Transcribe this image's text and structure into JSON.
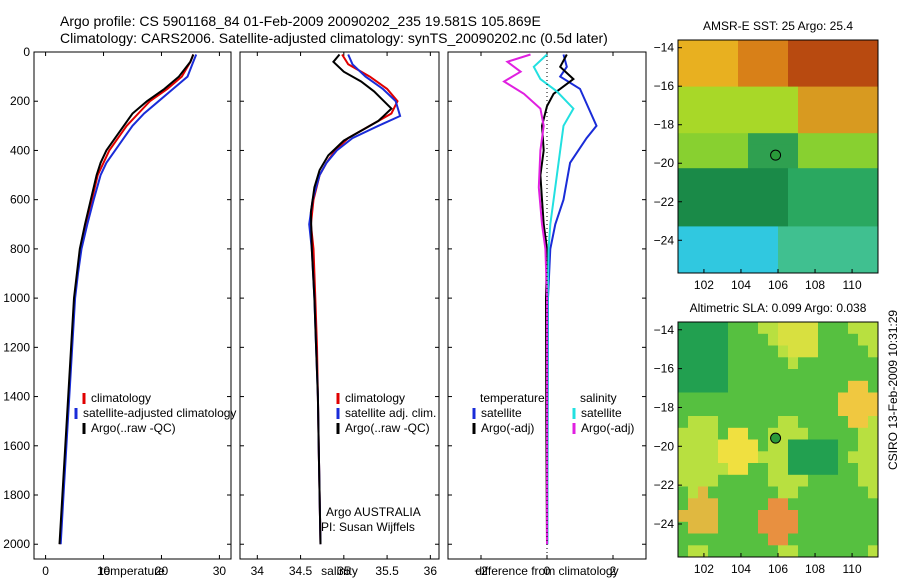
{
  "header": {
    "line1": "Argo profile: CS 5901168_84 01-Feb-2009 20090202_235 19.581S 105.869E",
    "line2": "Climatology: CARS2006. Satellite-adjusted climatology: synTS_20090202.nc (0.5d later)"
  },
  "timestamp": "CSIRO 13-Feb-2009 10:31:29",
  "colors": {
    "climatology": "#e00000",
    "satellite": "#1a2cd8",
    "argo": "#000000",
    "cyan": "#22e0e0",
    "magenta": "#e020e0"
  },
  "chart_data": [
    {
      "type": "line",
      "name": "temperature-profile",
      "xlabel": "temperature",
      "ylabel": "",
      "xlim": [
        -2,
        32
      ],
      "ylim": [
        2060,
        0
      ],
      "y_reversed": true,
      "xticks": [
        0,
        10,
        20,
        30
      ],
      "yticks": [
        0,
        200,
        400,
        600,
        800,
        1000,
        1200,
        1400,
        1600,
        1800,
        2000
      ],
      "legend": [
        "climatology",
        "satellite-adjusted climatology",
        "Argo(..raw -QC)"
      ],
      "series": [
        {
          "name": "climatology",
          "color": "climatology",
          "points": [
            [
              25.5,
              10
            ],
            [
              25,
              40
            ],
            [
              23.5,
              100
            ],
            [
              21,
              150
            ],
            [
              18,
              200
            ],
            [
              16,
              250
            ],
            [
              14,
              300
            ],
            [
              12.5,
              350
            ],
            [
              11,
              400
            ],
            [
              10,
              450
            ],
            [
              9,
              500
            ],
            [
              8,
              600
            ],
            [
              7,
              700
            ],
            [
              6,
              800
            ],
            [
              5.5,
              900
            ],
            [
              5,
              1000
            ],
            [
              4.5,
              1200
            ],
            [
              4,
              1400
            ],
            [
              3.5,
              1600
            ],
            [
              3,
              1800
            ],
            [
              2.5,
              2000
            ]
          ]
        },
        {
          "name": "satellite",
          "color": "satellite",
          "points": [
            [
              26,
              10
            ],
            [
              25.5,
              40
            ],
            [
              24.5,
              100
            ],
            [
              22,
              150
            ],
            [
              19.5,
              200
            ],
            [
              17,
              250
            ],
            [
              15,
              300
            ],
            [
              13.5,
              350
            ],
            [
              12,
              400
            ],
            [
              10.5,
              450
            ],
            [
              9.5,
              500
            ],
            [
              8.3,
              600
            ],
            [
              7.2,
              700
            ],
            [
              6.2,
              800
            ],
            [
              5.6,
              900
            ],
            [
              5.1,
              1000
            ],
            [
              4.6,
              1200
            ],
            [
              4.1,
              1400
            ],
            [
              3.6,
              1600
            ],
            [
              3.1,
              1800
            ],
            [
              2.6,
              2000
            ]
          ]
        },
        {
          "name": "Argo",
          "color": "argo",
          "points": [
            [
              25.5,
              10
            ],
            [
              25,
              40
            ],
            [
              23,
              100
            ],
            [
              20.5,
              150
            ],
            [
              17.5,
              200
            ],
            [
              15,
              250
            ],
            [
              13.5,
              300
            ],
            [
              12,
              350
            ],
            [
              10.5,
              400
            ],
            [
              9.5,
              450
            ],
            [
              8.8,
              500
            ],
            [
              7.8,
              600
            ],
            [
              6.8,
              700
            ],
            [
              5.9,
              800
            ],
            [
              5.4,
              900
            ],
            [
              4.9,
              1000
            ],
            [
              4.4,
              1200
            ],
            [
              3.9,
              1400
            ],
            [
              3.4,
              1600
            ],
            [
              2.9,
              1800
            ],
            [
              2.4,
              2000
            ]
          ]
        }
      ]
    },
    {
      "type": "line",
      "name": "salinity-profile",
      "xlabel": "salinity",
      "xlim": [
        33.8,
        36.1
      ],
      "ylim": [
        2060,
        0
      ],
      "y_reversed": true,
      "xticks": [
        34,
        34.5,
        35,
        35.5,
        36
      ],
      "legend": [
        "climatology",
        "satellite adj. clim.",
        "Argo(..raw -QC)"
      ],
      "annotations": [
        "Argo AUSTRALIA",
        "PI: Susan Wijffels"
      ],
      "series": [
        {
          "name": "climatology",
          "color": "climatology",
          "points": [
            [
              34.98,
              10
            ],
            [
              35.05,
              50
            ],
            [
              35.3,
              100
            ],
            [
              35.5,
              150
            ],
            [
              35.62,
              200
            ],
            [
              35.55,
              250
            ],
            [
              35.3,
              300
            ],
            [
              35.05,
              350
            ],
            [
              34.9,
              400
            ],
            [
              34.8,
              450
            ],
            [
              34.72,
              500
            ],
            [
              34.65,
              600
            ],
            [
              34.62,
              700
            ],
            [
              34.65,
              800
            ],
            [
              34.67,
              1000
            ],
            [
              34.69,
              1200
            ],
            [
              34.7,
              1400
            ],
            [
              34.71,
              1600
            ],
            [
              34.72,
              1800
            ],
            [
              34.73,
              2000
            ]
          ]
        },
        {
          "name": "satellite",
          "color": "satellite",
          "points": [
            [
              35.05,
              10
            ],
            [
              35.1,
              50
            ],
            [
              35.25,
              100
            ],
            [
              35.45,
              150
            ],
            [
              35.6,
              200
            ],
            [
              35.65,
              260
            ],
            [
              35.4,
              300
            ],
            [
              35.1,
              350
            ],
            [
              34.92,
              400
            ],
            [
              34.8,
              450
            ],
            [
              34.72,
              500
            ],
            [
              34.64,
              600
            ],
            [
              34.6,
              700
            ],
            [
              34.63,
              800
            ],
            [
              34.66,
              1000
            ],
            [
              34.68,
              1200
            ],
            [
              34.7,
              1400
            ],
            [
              34.71,
              1600
            ],
            [
              34.72,
              1800
            ],
            [
              34.73,
              2000
            ]
          ]
        },
        {
          "name": "Argo",
          "color": "argo",
          "points": [
            [
              34.95,
              10
            ],
            [
              34.88,
              40
            ],
            [
              35,
              80
            ],
            [
              35.2,
              120
            ],
            [
              35.35,
              160
            ],
            [
              35.55,
              230
            ],
            [
              35.4,
              280
            ],
            [
              35.2,
              320
            ],
            [
              35,
              360
            ],
            [
              34.82,
              420
            ],
            [
              34.72,
              480
            ],
            [
              34.66,
              550
            ],
            [
              34.62,
              650
            ],
            [
              34.63,
              800
            ],
            [
              34.66,
              1000
            ],
            [
              34.68,
              1200
            ],
            [
              34.7,
              1400
            ],
            [
              34.71,
              1600
            ],
            [
              34.72,
              1800
            ],
            [
              34.73,
              2000
            ]
          ]
        }
      ]
    },
    {
      "type": "line",
      "name": "difference-profile",
      "xlabel": "difference from climatology",
      "xlim": [
        -3,
        3
      ],
      "ylim": [
        2060,
        0
      ],
      "y_reversed": true,
      "xticks": [
        -2,
        0,
        2
      ],
      "legend_temperature": {
        "title": "temperature",
        "items": [
          "satellite",
          "Argo(-adj)"
        ]
      },
      "legend_salinity": {
        "title": "salinity",
        "items": [
          "satellite",
          "Argo(-adj)"
        ]
      },
      "series": [
        {
          "name": "temperature satellite",
          "color": "satellite",
          "points": [
            [
              0.5,
              10
            ],
            [
              0.6,
              60
            ],
            [
              0.4,
              100
            ],
            [
              1,
              150
            ],
            [
              1.5,
              300
            ],
            [
              1.2,
              350
            ],
            [
              0.7,
              450
            ],
            [
              0.5,
              600
            ],
            [
              0.25,
              700
            ],
            [
              0.1,
              800
            ],
            [
              0.03,
              1000
            ],
            [
              0.02,
              1500
            ],
            [
              0.01,
              2000
            ]
          ]
        },
        {
          "name": "temperature Argo",
          "color": "argo",
          "points": [
            [
              0.6,
              10
            ],
            [
              0.4,
              60
            ],
            [
              0.8,
              110
            ],
            [
              0.2,
              170
            ],
            [
              0,
              220
            ],
            [
              -0.15,
              300
            ],
            [
              -0.1,
              400
            ],
            [
              -0.2,
              500
            ],
            [
              -0.15,
              600
            ],
            [
              -0.1,
              700
            ],
            [
              0,
              800
            ],
            [
              -0.03,
              1000
            ],
            [
              -0.02,
              1500
            ],
            [
              0,
              2000
            ]
          ]
        },
        {
          "name": "salinity satellite",
          "color": "cyan",
          "points": [
            [
              0,
              10
            ],
            [
              -0.4,
              60
            ],
            [
              -0.2,
              110
            ],
            [
              0.3,
              160
            ],
            [
              0.8,
              230
            ],
            [
              0.5,
              300
            ],
            [
              0.4,
              400
            ],
            [
              0.3,
              500
            ],
            [
              0.2,
              600
            ],
            [
              0.1,
              700
            ],
            [
              0.05,
              800
            ],
            [
              0.02,
              1000
            ],
            [
              0.01,
              2000
            ]
          ]
        },
        {
          "name": "salinity Argo",
          "color": "magenta",
          "points": [
            [
              -0.5,
              10
            ],
            [
              -1.2,
              40
            ],
            [
              -0.8,
              80
            ],
            [
              -1.3,
              120
            ],
            [
              -0.7,
              170
            ],
            [
              -0.2,
              230
            ],
            [
              -0.1,
              300
            ],
            [
              -0.2,
              400
            ],
            [
              -0.25,
              550
            ],
            [
              -0.15,
              700
            ],
            [
              -0.05,
              800
            ],
            [
              0,
              1000
            ],
            [
              0,
              2000
            ]
          ]
        }
      ]
    },
    {
      "type": "heatmap",
      "name": "amsr-sst-map",
      "title": "AMSR-E SST: 25 Argo: 25.4",
      "xlim": [
        100.6,
        111.4
      ],
      "ylim": [
        -25.7,
        -13.6
      ],
      "xticks": [
        102,
        104,
        106,
        108,
        110
      ],
      "yticks": [
        -14,
        -16,
        -18,
        -20,
        -22,
        -24
      ],
      "argo_position": {
        "lon": 105.869,
        "lat": -19.581
      }
    },
    {
      "type": "heatmap",
      "name": "altimetric-sla-map",
      "title": "Altimetric SLA: 0.099 Argo: 0.038",
      "xlim": [
        100.6,
        111.4
      ],
      "ylim": [
        -25.7,
        -13.6
      ],
      "xticks": [
        102,
        104,
        106,
        108,
        110
      ],
      "yticks": [
        -14,
        -16,
        -18,
        -20,
        -22,
        -24
      ],
      "argo_position": {
        "lon": 105.869,
        "lat": -19.581
      }
    }
  ]
}
